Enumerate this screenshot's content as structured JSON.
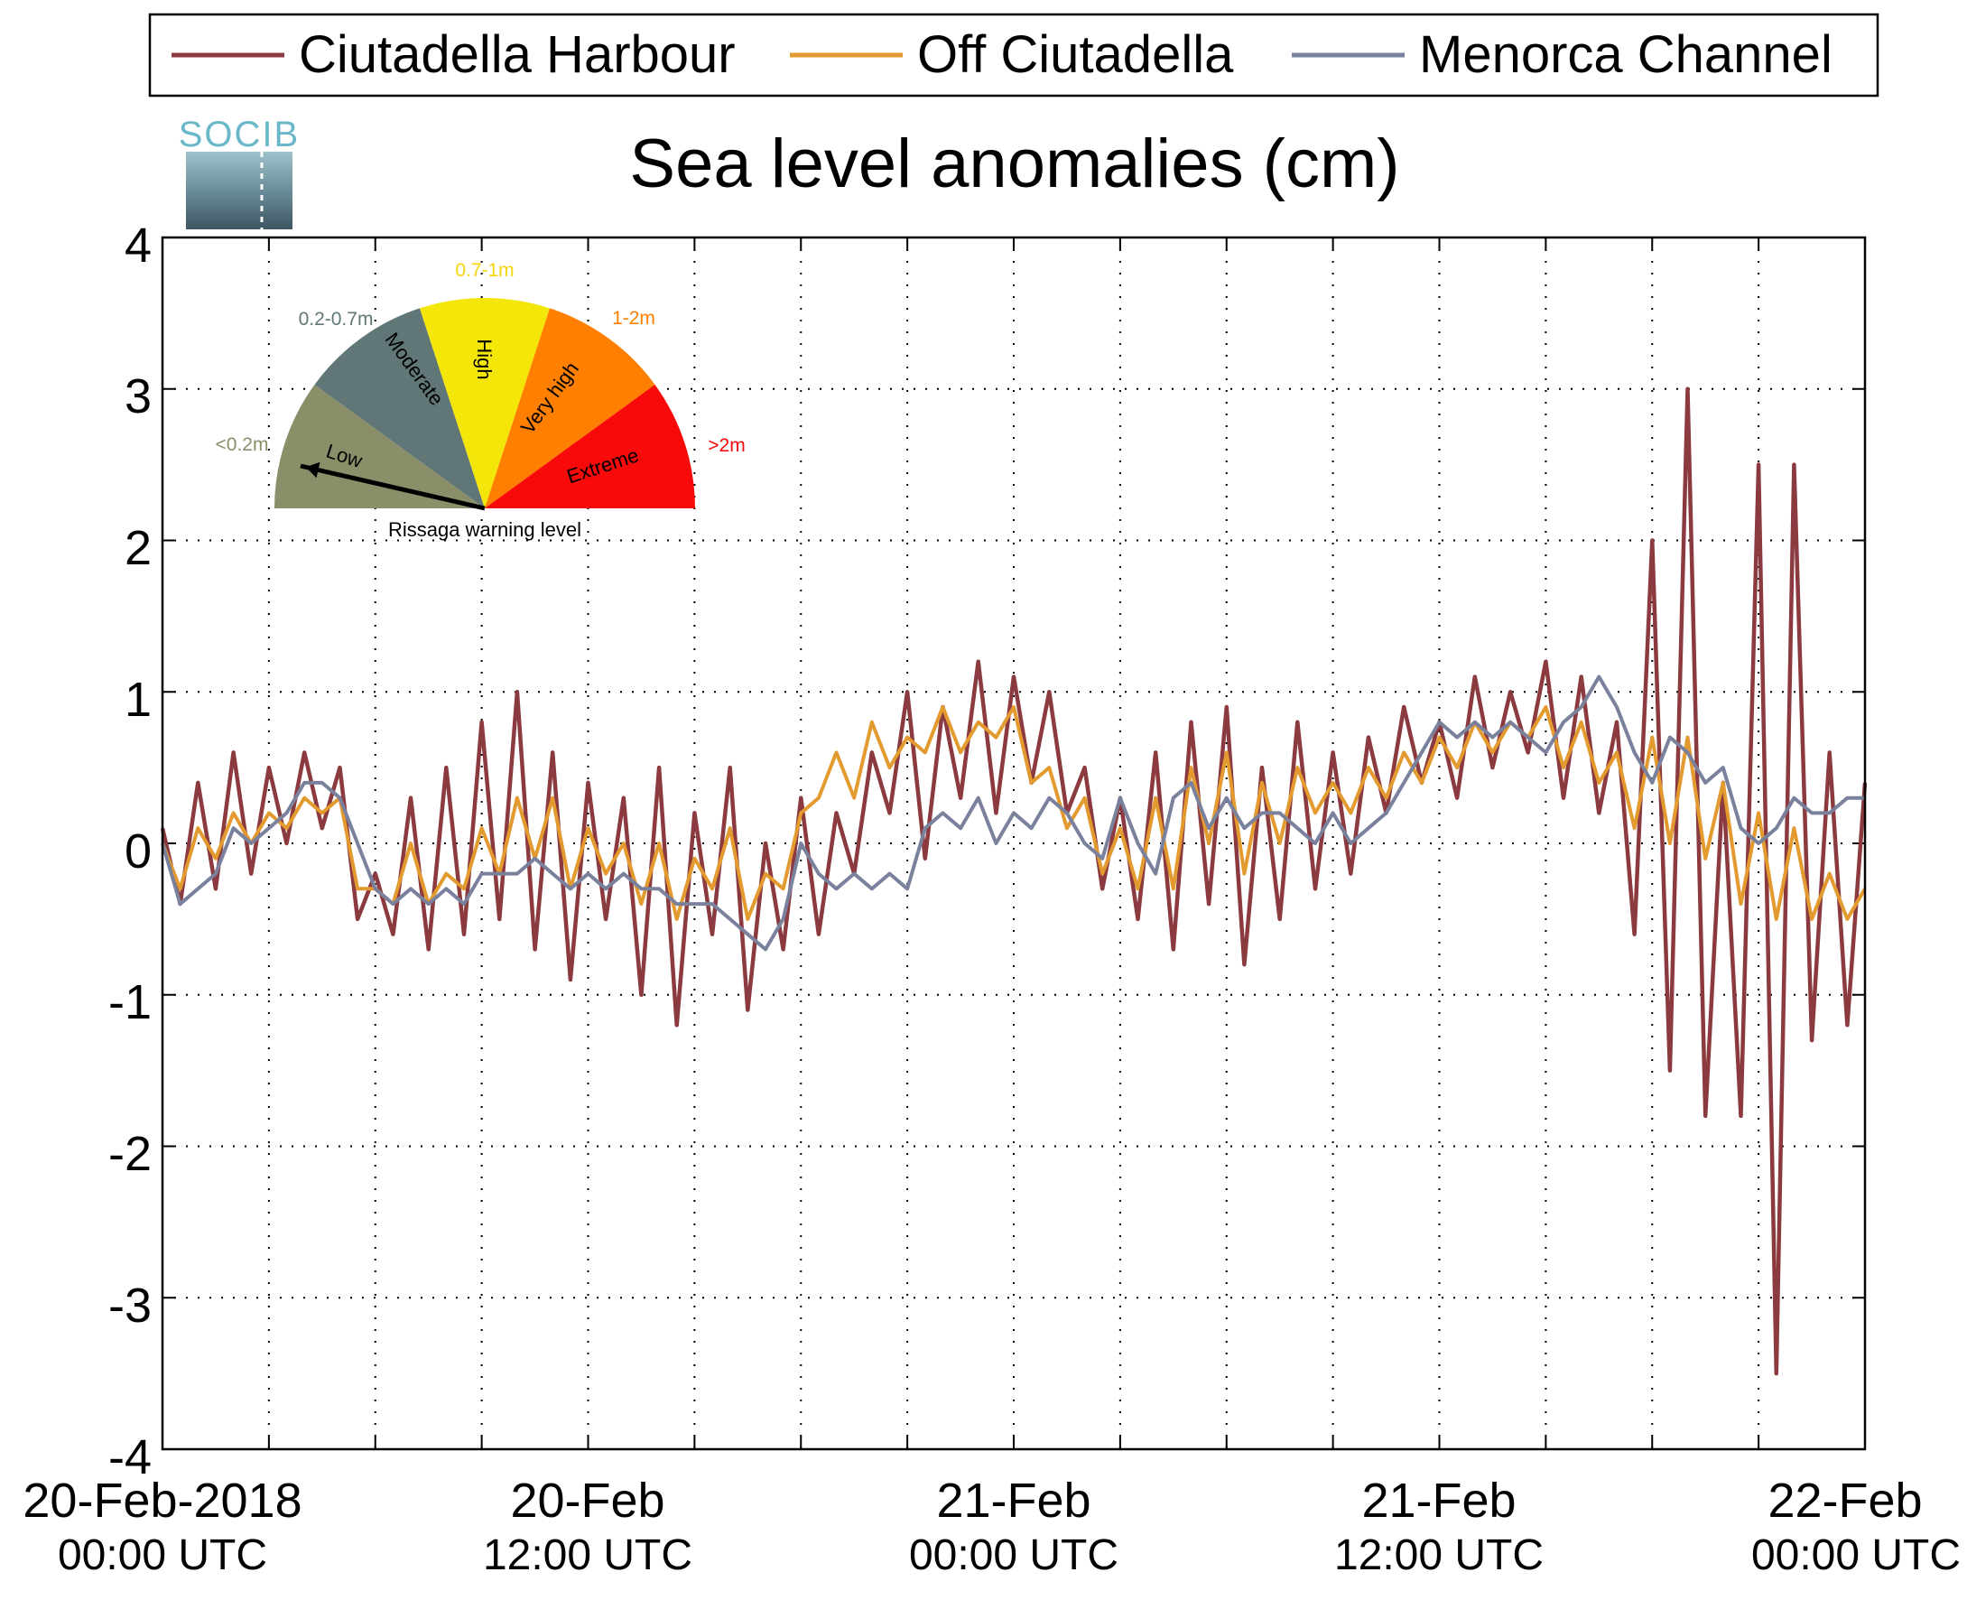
{
  "logo": {
    "text": "SOCIB"
  },
  "chart_data": {
    "type": "line",
    "title": "Sea level anomalies (cm)",
    "xlabel": "",
    "ylabel": "",
    "ylim": [
      -4,
      4
    ],
    "yticks": [
      4,
      3,
      2,
      1,
      0,
      -1,
      -2,
      -3,
      -4
    ],
    "yticklabels": [
      "4",
      "3",
      "2",
      "1",
      "0",
      "-1",
      "-2",
      "-3",
      "-4"
    ],
    "xlim": [
      "2018-02-20 00:00",
      "2018-02-22 00:00"
    ],
    "xticks_hours": [
      0,
      3,
      6,
      9,
      12,
      15,
      18,
      21,
      24,
      27,
      30,
      33,
      36,
      39,
      42,
      45,
      48
    ],
    "xtick_labels": [
      {
        "hour": 0,
        "line1": "20-Feb-2018",
        "line2": "00:00 UTC"
      },
      {
        "hour": 12,
        "line1": "20-Feb",
        "line2": "12:00 UTC"
      },
      {
        "hour": 24,
        "line1": "21-Feb",
        "line2": "00:00 UTC"
      },
      {
        "hour": 36,
        "line1": "21-Feb",
        "line2": "12:00 UTC"
      },
      {
        "hour": 48,
        "line1": "22-Feb",
        "line2": "00:00 UTC"
      }
    ],
    "grid": true,
    "legend_position": "top",
    "series": [
      {
        "name": "Ciutadella Harbour",
        "color": "#8b3a3f",
        "time_hours": [
          0,
          0.5,
          1,
          1.5,
          2,
          2.5,
          3,
          3.5,
          4,
          4.5,
          5,
          5.5,
          6,
          6.5,
          7,
          7.5,
          8,
          8.5,
          9,
          9.5,
          10,
          10.5,
          11,
          11.5,
          12,
          12.5,
          13,
          13.5,
          14,
          14.5,
          15,
          15.5,
          16,
          16.5,
          17,
          17.5,
          18,
          18.5,
          19,
          19.5,
          20,
          20.5,
          21,
          21.5,
          22,
          22.5,
          23,
          23.5,
          24,
          24.5,
          25,
          25.5,
          26,
          26.5,
          27,
          27.5,
          28,
          28.5,
          29,
          29.5,
          30,
          30.5,
          31,
          31.5,
          32,
          32.5,
          33,
          33.5,
          34,
          34.5,
          35,
          35.5,
          36,
          36.5,
          37,
          37.5,
          38,
          38.5,
          39,
          39.5,
          40,
          40.5,
          41,
          41.5,
          42,
          42.5,
          43,
          43.5,
          44,
          44.5,
          45,
          45.5,
          46,
          46.5,
          47,
          47.5,
          48
        ],
        "values": [
          0.1,
          -0.4,
          0.4,
          -0.3,
          0.6,
          -0.2,
          0.5,
          0.0,
          0.6,
          0.1,
          0.5,
          -0.5,
          -0.2,
          -0.6,
          0.3,
          -0.7,
          0.5,
          -0.6,
          0.8,
          -0.5,
          1.0,
          -0.7,
          0.6,
          -0.9,
          0.4,
          -0.5,
          0.3,
          -1.0,
          0.5,
          -1.2,
          0.2,
          -0.6,
          0.5,
          -1.1,
          0.0,
          -0.7,
          0.3,
          -0.6,
          0.2,
          -0.2,
          0.6,
          0.2,
          1.0,
          -0.1,
          0.9,
          0.3,
          1.2,
          0.2,
          1.1,
          0.4,
          1.0,
          0.2,
          0.5,
          -0.3,
          0.3,
          -0.5,
          0.6,
          -0.7,
          0.8,
          -0.4,
          0.9,
          -0.8,
          0.5,
          -0.5,
          0.8,
          -0.3,
          0.6,
          -0.2,
          0.7,
          0.2,
          0.9,
          0.4,
          0.8,
          0.3,
          1.1,
          0.5,
          1.0,
          0.6,
          1.2,
          0.3,
          1.1,
          0.2,
          0.8,
          -0.6,
          2.0,
          -1.5,
          3.0,
          -1.8,
          0.4,
          -1.8,
          2.5,
          -3.5,
          2.5,
          -1.3,
          0.6,
          -1.2,
          0.4
        ]
      },
      {
        "name": "Off Ciutadella",
        "color": "#e39a2f",
        "time_hours": [
          0,
          0.5,
          1,
          1.5,
          2,
          2.5,
          3,
          3.5,
          4,
          4.5,
          5,
          5.5,
          6,
          6.5,
          7,
          7.5,
          8,
          8.5,
          9,
          9.5,
          10,
          10.5,
          11,
          11.5,
          12,
          12.5,
          13,
          13.5,
          14,
          14.5,
          15,
          15.5,
          16,
          16.5,
          17,
          17.5,
          18,
          18.5,
          19,
          19.5,
          20,
          20.5,
          21,
          21.5,
          22,
          22.5,
          23,
          23.5,
          24,
          24.5,
          25,
          25.5,
          26,
          26.5,
          27,
          27.5,
          28,
          28.5,
          29,
          29.5,
          30,
          30.5,
          31,
          31.5,
          32,
          32.5,
          33,
          33.5,
          34,
          34.5,
          35,
          35.5,
          36,
          36.5,
          37,
          37.5,
          38,
          38.5,
          39,
          39.5,
          40,
          40.5,
          41,
          41.5,
          42,
          42.5,
          43,
          43.5,
          44,
          44.5,
          45,
          45.5,
          46,
          46.5,
          47,
          47.5,
          48
        ],
        "values": [
          0.0,
          -0.3,
          0.1,
          -0.1,
          0.2,
          0.0,
          0.2,
          0.1,
          0.3,
          0.2,
          0.3,
          -0.3,
          -0.3,
          -0.4,
          0.0,
          -0.4,
          -0.2,
          -0.3,
          0.1,
          -0.2,
          0.3,
          -0.1,
          0.3,
          -0.3,
          0.1,
          -0.2,
          0.0,
          -0.4,
          0.0,
          -0.5,
          -0.1,
          -0.3,
          0.1,
          -0.5,
          -0.2,
          -0.3,
          0.2,
          0.3,
          0.6,
          0.3,
          0.8,
          0.5,
          0.7,
          0.6,
          0.9,
          0.6,
          0.8,
          0.7,
          0.9,
          0.4,
          0.5,
          0.1,
          0.3,
          -0.2,
          0.1,
          -0.3,
          0.3,
          -0.3,
          0.5,
          0.0,
          0.6,
          -0.2,
          0.4,
          0.0,
          0.5,
          0.2,
          0.4,
          0.2,
          0.5,
          0.3,
          0.6,
          0.4,
          0.7,
          0.5,
          0.8,
          0.6,
          0.8,
          0.7,
          0.9,
          0.5,
          0.8,
          0.4,
          0.6,
          0.1,
          0.7,
          0.0,
          0.7,
          -0.1,
          0.4,
          -0.4,
          0.2,
          -0.5,
          0.1,
          -0.5,
          -0.2,
          -0.5,
          -0.3
        ]
      },
      {
        "name": "Menorca Channel",
        "color": "#7a819c",
        "time_hours": [
          0,
          0.5,
          1,
          1.5,
          2,
          2.5,
          3,
          3.5,
          4,
          4.5,
          5,
          5.5,
          6,
          6.5,
          7,
          7.5,
          8,
          8.5,
          9,
          9.5,
          10,
          10.5,
          11,
          11.5,
          12,
          12.5,
          13,
          13.5,
          14,
          14.5,
          15,
          15.5,
          16,
          16.5,
          17,
          17.5,
          18,
          18.5,
          19,
          19.5,
          20,
          20.5,
          21,
          21.5,
          22,
          22.5,
          23,
          23.5,
          24,
          24.5,
          25,
          25.5,
          26,
          26.5,
          27,
          27.5,
          28,
          28.5,
          29,
          29.5,
          30,
          30.5,
          31,
          31.5,
          32,
          32.5,
          33,
          33.5,
          34,
          34.5,
          35,
          35.5,
          36,
          36.5,
          37,
          37.5,
          38,
          38.5,
          39,
          39.5,
          40,
          40.5,
          41,
          41.5,
          42,
          42.5,
          43,
          43.5,
          44,
          44.5,
          45,
          45.5,
          46,
          46.5,
          47,
          47.5,
          48
        ],
        "values": [
          0.0,
          -0.4,
          -0.3,
          -0.2,
          0.1,
          0.0,
          0.1,
          0.2,
          0.4,
          0.4,
          0.3,
          0.0,
          -0.3,
          -0.4,
          -0.3,
          -0.4,
          -0.3,
          -0.4,
          -0.2,
          -0.2,
          -0.2,
          -0.1,
          -0.2,
          -0.3,
          -0.2,
          -0.3,
          -0.2,
          -0.3,
          -0.3,
          -0.4,
          -0.4,
          -0.4,
          -0.5,
          -0.6,
          -0.7,
          -0.5,
          0.0,
          -0.2,
          -0.3,
          -0.2,
          -0.3,
          -0.2,
          -0.3,
          0.1,
          0.2,
          0.1,
          0.3,
          0.0,
          0.2,
          0.1,
          0.3,
          0.2,
          0.0,
          -0.1,
          0.3,
          0.0,
          -0.2,
          0.3,
          0.4,
          0.1,
          0.3,
          0.1,
          0.2,
          0.2,
          0.1,
          0.0,
          0.2,
          0.0,
          0.1,
          0.2,
          0.4,
          0.6,
          0.8,
          0.7,
          0.8,
          0.7,
          0.8,
          0.7,
          0.6,
          0.8,
          0.9,
          1.1,
          0.9,
          0.6,
          0.4,
          0.7,
          0.6,
          0.4,
          0.5,
          0.1,
          0.0,
          0.1,
          0.3,
          0.2,
          0.2,
          0.3,
          0.3
        ]
      }
    ]
  },
  "gauge": {
    "caption": "Rissaga warning level",
    "needle_level": "Low",
    "segments": [
      {
        "label": "Low",
        "range": "<0.2m",
        "color": "#8a8f6a",
        "range_color": "#8a8f6a"
      },
      {
        "label": "Moderate",
        "range": "0.2-0.7m",
        "color": "#607677",
        "range_color": "#607677"
      },
      {
        "label": "High",
        "range": "0.7-1m",
        "color": "#f5e60a",
        "range_color": "#f5d50a"
      },
      {
        "label": "Very high",
        "range": "1-2m",
        "color": "#ff7f00",
        "range_color": "#ff7f00"
      },
      {
        "label": "Extreme",
        "range": ">2m",
        "color": "#f80a0a",
        "range_color": "#f80a0a"
      }
    ]
  }
}
